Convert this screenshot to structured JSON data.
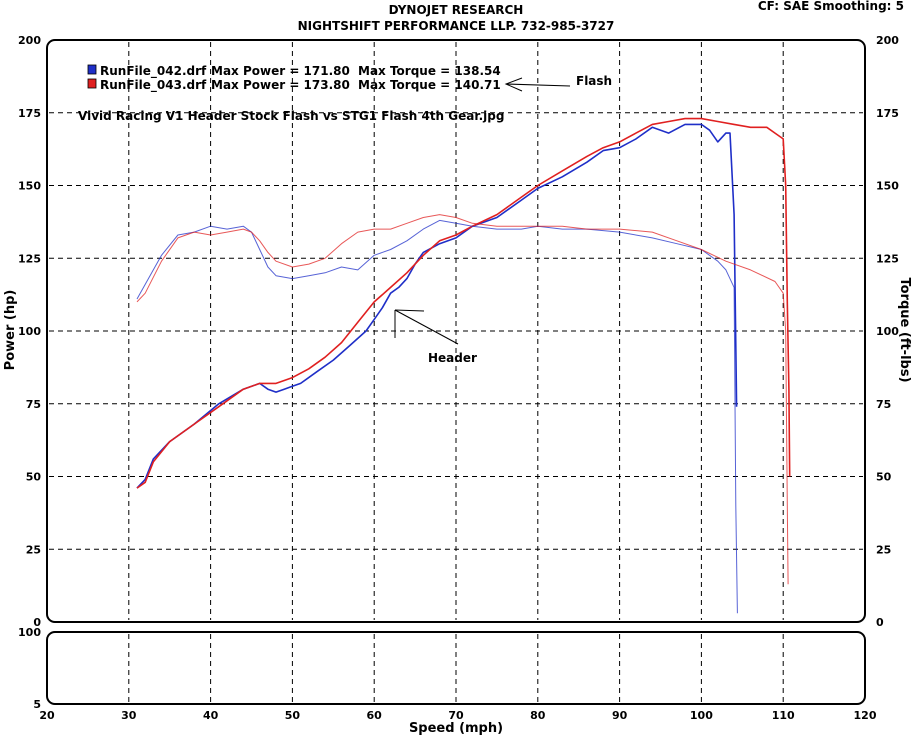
{
  "header": {
    "line1": "DYNOJET RESEARCH",
    "line2": "NIGHTSHIFT PERFORMANCE LLP. 732-985-3727",
    "settings": "CF: SAE  Smoothing: 5"
  },
  "colors": {
    "run042": "#1f2fc8",
    "run043": "#e02020",
    "grid": "#000000",
    "frame": "#000000"
  },
  "chart_data": {
    "type": "line",
    "title": "Vivid Racing V1 Header Stock Flash vs STG1 Flash 4th Gear.jpg",
    "xlabel": "Speed (mph)",
    "ylabel_left": "Power (hp)",
    "ylabel_right": "Torque (ft-lbs)",
    "xlim": [
      20,
      120
    ],
    "ylim": [
      0,
      200
    ],
    "sub_ylim": [
      0,
      100
    ],
    "x_ticks": [
      "20",
      "30",
      "40",
      "50",
      "60",
      "70",
      "80",
      "90",
      "100",
      "110",
      "120"
    ],
    "y_ticks": [
      "0",
      "25",
      "50",
      "75",
      "100",
      "125",
      "150",
      "175",
      "200"
    ],
    "sub_y_ticks": [
      "100",
      "5"
    ],
    "legend": [
      {
        "file": "RunFile_042.drf",
        "power_label": "Max Power = 171.80",
        "torque_label": "Max Torque = 138.54"
      },
      {
        "file": "RunFile_043.drf",
        "power_label": "Max Power = 173.80",
        "torque_label": "Max Torque = 140.71"
      }
    ],
    "annotations": {
      "flash": "Flash",
      "header": "Header"
    },
    "series": [
      {
        "name": "RunFile_042.drf Power",
        "x": [
          31,
          32,
          33,
          35,
          38,
          41,
          44,
          46,
          47,
          48,
          49,
          50,
          51,
          53,
          55,
          57,
          59,
          60,
          61,
          62,
          63,
          64,
          65,
          66,
          68,
          70,
          72,
          75,
          78,
          80,
          83,
          86,
          88,
          90,
          92,
          94,
          96,
          98,
          100,
          101,
          102,
          103,
          103.5,
          104,
          104.3
        ],
        "y": [
          46,
          49,
          56,
          62,
          68,
          75,
          80,
          82,
          80,
          79,
          80,
          81,
          82,
          86,
          90,
          95,
          100,
          104,
          108,
          113,
          115,
          118,
          123,
          127,
          130,
          132,
          136,
          139,
          145,
          149,
          153,
          158,
          162,
          163,
          166,
          170,
          168,
          171,
          171,
          169,
          165,
          168,
          168,
          140,
          74
        ]
      },
      {
        "name": "RunFile_043.drf Power",
        "x": [
          31,
          32,
          33,
          35,
          38,
          41,
          44,
          46,
          47,
          48,
          50,
          52,
          54,
          56,
          58,
          60,
          62,
          64,
          66,
          68,
          70,
          72,
          75,
          78,
          80,
          83,
          86,
          88,
          90,
          92,
          94,
          96,
          98,
          100,
          102,
          104,
          106,
          108,
          109,
          110,
          110.3,
          110.5,
          110.7,
          110.8
        ],
        "y": [
          46,
          48,
          55,
          62,
          68,
          74,
          80,
          82,
          82,
          82,
          84,
          87,
          91,
          96,
          103,
          110,
          115,
          120,
          126,
          131,
          133,
          136,
          140,
          146,
          150,
          155,
          160,
          163,
          165,
          168,
          171,
          172,
          173,
          173,
          172,
          171,
          170,
          170,
          168,
          166,
          150,
          110,
          80,
          50
        ]
      },
      {
        "name": "RunFile_042.drf Torque",
        "x": [
          31,
          32,
          34,
          36,
          38,
          40,
          42,
          44,
          45,
          46,
          47,
          48,
          50,
          52,
          54,
          56,
          58,
          60,
          62,
          64,
          66,
          68,
          70,
          72,
          75,
          78,
          80,
          83,
          86,
          90,
          94,
          97,
          100,
          102,
          103,
          104,
          104.2,
          104.4
        ],
        "y": [
          111,
          116,
          126,
          133,
          134,
          136,
          135,
          136,
          134,
          128,
          122,
          119,
          118,
          119,
          120,
          122,
          121,
          126,
          128,
          131,
          135,
          138,
          137,
          136,
          135,
          135,
          136,
          135,
          135,
          134,
          132,
          130,
          128,
          124,
          121,
          115,
          40,
          3
        ]
      },
      {
        "name": "RunFile_043.drf Torque",
        "x": [
          31,
          32,
          34,
          36,
          38,
          40,
          42,
          44,
          45,
          46,
          47,
          48,
          50,
          52,
          54,
          56,
          58,
          60,
          62,
          64,
          66,
          68,
          70,
          72,
          75,
          78,
          80,
          83,
          86,
          90,
          94,
          97,
          100,
          103,
          106,
          109,
          110,
          110.3,
          110.5,
          110.6
        ],
        "y": [
          110,
          113,
          124,
          132,
          134,
          133,
          134,
          135,
          134,
          131,
          127,
          124,
          122,
          123,
          125,
          130,
          134,
          135,
          135,
          137,
          139,
          140,
          139,
          137,
          136,
          136,
          136,
          136,
          135,
          135,
          134,
          131,
          128,
          124,
          121,
          117,
          113,
          100,
          40,
          13
        ]
      }
    ]
  }
}
